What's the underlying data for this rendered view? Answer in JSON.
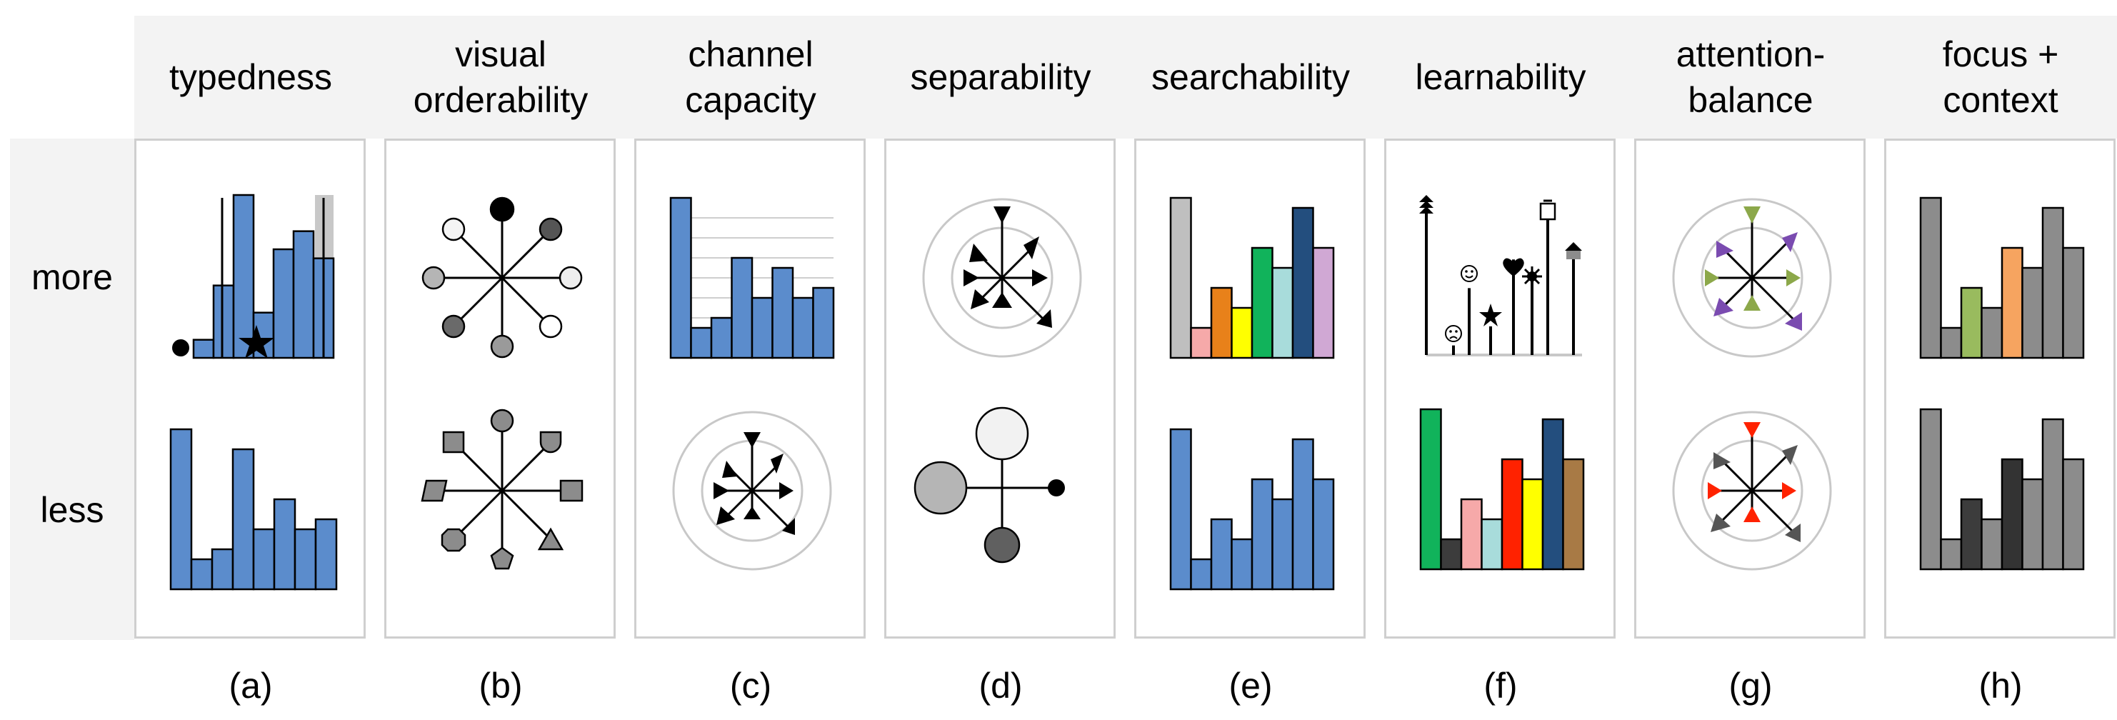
{
  "columns": [
    {
      "id": "a",
      "header": "typedness",
      "caption": "(a)"
    },
    {
      "id": "b",
      "header": "visual\norderability",
      "caption": "(b)"
    },
    {
      "id": "c",
      "header": "channel\ncapacity",
      "caption": "(c)"
    },
    {
      "id": "d",
      "header": "separability",
      "caption": "(d)"
    },
    {
      "id": "e",
      "header": "searchability",
      "caption": "(e)"
    },
    {
      "id": "f",
      "header": "learnability",
      "caption": "(f)"
    },
    {
      "id": "g",
      "header": "attention-\nbalance",
      "caption": "(g)"
    },
    {
      "id": "h",
      "header": "focus +\ncontext",
      "caption": "(h)"
    }
  ],
  "rows": [
    {
      "id": "more",
      "label": "more"
    },
    {
      "id": "less",
      "label": "less"
    }
  ],
  "colors": {
    "blue": "#5b8ccc",
    "ink": "#000000",
    "panel_border": "#cfcfcf",
    "band": "#f3f3f3",
    "ring": "#c8c8c8",
    "gray_bar": "#8c8c8c",
    "dark_bar": "#333333",
    "highlight": "#c8c8c8"
  },
  "glyphs": {
    "more_a": [
      "circle",
      "star"
    ],
    "more_f": [
      "sad-face",
      "smiley-face",
      "star",
      "heart",
      "asterisk",
      "bottle",
      "house"
    ],
    "less_b": [
      "square",
      "circle",
      "leaf",
      "square",
      "triangle",
      "pentagon",
      "cog",
      "parallelogram"
    ]
  },
  "chart_data": [
    {
      "type": "bar",
      "panel": "a-more",
      "values": [
        2,
        8,
        18,
        5,
        12,
        14,
        11
      ],
      "highlighted_positions": [
        2,
        6
      ],
      "color": "#5b8ccc"
    },
    {
      "type": "bar",
      "panel": "a-less",
      "values": [
        16,
        3,
        4,
        14,
        6,
        9,
        6,
        7
      ],
      "color": "#5b8ccc"
    },
    {
      "type": "bar",
      "panel": "c-more",
      "values": [
        16,
        3,
        4,
        10,
        6,
        9,
        6,
        7
      ],
      "color": "#5b8ccc"
    },
    {
      "type": "bar",
      "panel": "e-more",
      "values": [
        16,
        3,
        7,
        5,
        11,
        9,
        15,
        11
      ],
      "colors": [
        "#bfbfbf",
        "#f6a9a9",
        "#e8811a",
        "#ffff00",
        "#11b35b",
        "#a8dcdb",
        "#234e7e",
        "#d0a8d4"
      ]
    },
    {
      "type": "bar",
      "panel": "e-less",
      "values": [
        16,
        3,
        7,
        5,
        11,
        9,
        15,
        11
      ],
      "color": "#5b8ccc"
    },
    {
      "type": "bar",
      "panel": "f-less",
      "values": [
        16,
        3,
        7,
        5,
        11,
        9,
        15,
        11
      ],
      "colors": [
        "#11b35b",
        "#3c3c3c",
        "#f6a9a9",
        "#a8dcdb",
        "#ff2200",
        "#ffff00",
        "#234e7e",
        "#a87a45"
      ]
    },
    {
      "type": "bar",
      "panel": "h-more",
      "values": [
        16,
        3,
        7,
        5,
        11,
        9,
        15,
        11
      ],
      "colors": [
        "#8c8c8c",
        "#8c8c8c",
        "#99bb5e",
        "#8c8c8c",
        "#f6a460",
        "#8c8c8c",
        "#8c8c8c",
        "#8c8c8c"
      ]
    },
    {
      "type": "bar",
      "panel": "h-less",
      "values": [
        16,
        3,
        7,
        5,
        11,
        9,
        15,
        11
      ],
      "colors": [
        "#8c8c8c",
        "#8c8c8c",
        "#3c3c3c",
        "#8c8c8c",
        "#333333",
        "#8c8c8c",
        "#8c8c8c",
        "#8c8c8c"
      ]
    },
    {
      "type": "scatter",
      "panel": "f-more",
      "values": [
        16,
        1,
        7,
        3,
        10,
        8,
        15,
        11
      ],
      "color": "#000000"
    }
  ]
}
